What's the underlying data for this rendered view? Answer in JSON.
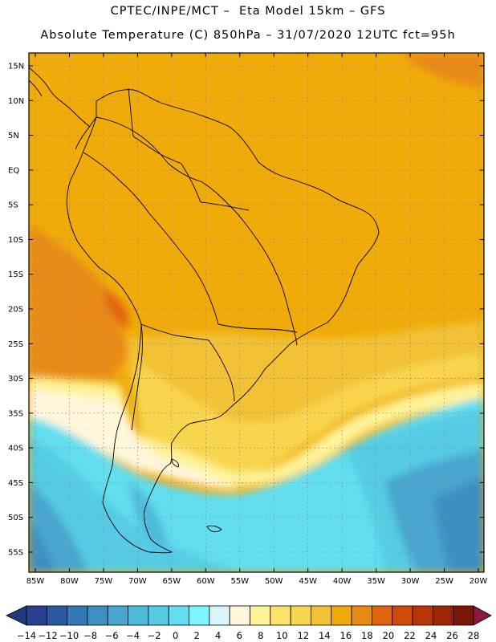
{
  "header": {
    "line1": "CPTEC/INPE/MCT –  Eta Model 15km – GFS",
    "line2": "Absolute Temperature (C) 850hPa – 31/07/2020 12UTC fct=95h"
  },
  "map": {
    "lat_labels": [
      "15N",
      "10N",
      "5N",
      "EQ",
      "5S",
      "10S",
      "15S",
      "20S",
      "25S",
      "30S",
      "35S",
      "40S",
      "45S",
      "50S",
      "55S"
    ],
    "lon_labels": [
      "85W",
      "80W",
      "75W",
      "70W",
      "65W",
      "60W",
      "55W",
      "50W",
      "45W",
      "40W",
      "35W",
      "30W",
      "25W",
      "20W"
    ],
    "lat_values": [
      15,
      10,
      5,
      0,
      -5,
      -10,
      -15,
      -20,
      -25,
      -30,
      -35,
      -40,
      -45,
      -50,
      -55
    ],
    "lon_values": [
      -85,
      -80,
      -75,
      -70,
      -65,
      -60,
      -55,
      -50,
      -45,
      -40,
      -35,
      -30,
      -25,
      -20
    ]
  },
  "colorbar": {
    "labels": [
      "-14",
      "-12",
      "-10",
      "-8",
      "-6",
      "-4",
      "-2",
      "0",
      "2",
      "4",
      "6",
      "8",
      "10",
      "12",
      "14",
      "16",
      "18",
      "20",
      "22",
      "24",
      "26",
      "28"
    ],
    "colors": [
      "#27408f",
      "#2c5aa0",
      "#3378b2",
      "#3e8fc2",
      "#48a6cf",
      "#4fbad9",
      "#55cce4",
      "#62def0",
      "#7ef6ff",
      "#d8f6fb",
      "#fff6dc",
      "#fff39a",
      "#fbe36a",
      "#f8d54e",
      "#f3c136",
      "#f0ab0a",
      "#e98a12",
      "#e06410",
      "#cf4a0c",
      "#b93507",
      "#9e2508",
      "#7a1608"
    ],
    "left_arrow_color": "#1f3a7a",
    "right_arrow_color": "#8b1a3a"
  }
}
